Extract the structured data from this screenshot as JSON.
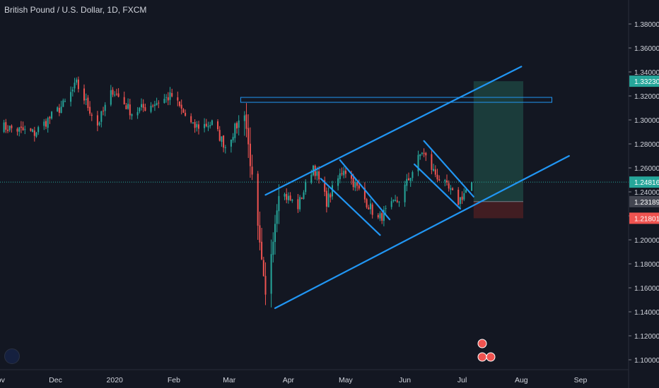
{
  "chart_title": "British Pound / U.S. Dollar, 1D, FXCM",
  "colors": {
    "background": "#131722",
    "text": "#d1d4dc",
    "grid": "#1e2230",
    "up": "#26a69a",
    "down": "#ef5350",
    "trendline": "#2196f3",
    "target_zone": "#1f4a44",
    "stop_zone": "#4a1f22"
  },
  "chart_data": {
    "type": "candlestick",
    "title": "British Pound / U.S. Dollar, 1D, FXCM",
    "x_ticks": [
      "Nov",
      "Dec",
      "2020",
      "Feb",
      "Mar",
      "Apr",
      "May",
      "Jun",
      "Jul",
      "Aug",
      "Sep"
    ],
    "y_ticks": [
      "1.38000",
      "1.36000",
      "1.34000",
      "1.32000",
      "1.30000",
      "1.28000",
      "1.26000",
      "1.24000",
      "1.22000",
      "1.20000",
      "1.18000",
      "1.16000",
      "1.14000",
      "1.12000",
      "1.10000"
    ],
    "ylim": [
      1.094,
      1.398
    ],
    "grid": false,
    "price_labels": [
      {
        "label": "1.33230",
        "value": 1.3323,
        "color": "#26a69a"
      },
      {
        "label": "1.24816",
        "value": 1.24816,
        "color": "#26a69a"
      },
      {
        "label": "1.23189",
        "value": 1.23189,
        "color": "#434651"
      },
      {
        "label": "1.21801",
        "value": 1.21801,
        "color": "#ef5350"
      }
    ],
    "current_price": 1.24816,
    "position": {
      "entry": 1.23189,
      "target": 1.3323,
      "stop": 1.21801
    },
    "resistance_zone": [
      1.3176,
      1.3188
    ],
    "anchors": [
      {
        "date": "2019-11-01",
        "close": 1.295
      },
      {
        "date": "2019-11-20",
        "close": 1.289
      },
      {
        "date": "2019-12-06",
        "close": 1.314
      },
      {
        "date": "2019-12-12",
        "close": 1.33
      },
      {
        "date": "2019-12-23",
        "close": 1.296
      },
      {
        "date": "2019-12-31",
        "close": 1.325
      },
      {
        "date": "2020-01-10",
        "close": 1.306
      },
      {
        "date": "2020-01-31",
        "close": 1.32
      },
      {
        "date": "2020-02-11",
        "close": 1.294
      },
      {
        "date": "2020-02-21",
        "close": 1.297
      },
      {
        "date": "2020-02-28",
        "close": 1.278
      },
      {
        "date": "2020-03-09",
        "close": 1.307
      },
      {
        "date": "2020-03-20",
        "close": 1.152
      },
      {
        "date": "2020-03-27",
        "close": 1.241
      },
      {
        "date": "2020-04-06",
        "close": 1.228
      },
      {
        "date": "2020-04-14",
        "close": 1.262
      },
      {
        "date": "2020-04-21",
        "close": 1.232
      },
      {
        "date": "2020-04-30",
        "close": 1.26
      },
      {
        "date": "2020-05-18",
        "close": 1.217
      },
      {
        "date": "2020-05-29",
        "close": 1.234
      },
      {
        "date": "2020-06-10",
        "close": 1.274
      },
      {
        "date": "2020-06-16",
        "close": 1.257
      },
      {
        "date": "2020-06-29",
        "close": 1.232
      },
      {
        "date": "2020-07-06",
        "close": 1.248
      }
    ],
    "trendlines": [
      {
        "name": "channel-upper",
        "from": {
          "date": "2020-03-20",
          "value": 1.2375
        },
        "to": {
          "date": "2020-08-01",
          "value": 1.3445
        }
      },
      {
        "name": "channel-lower",
        "from": {
          "date": "2020-03-25",
          "value": 1.143
        },
        "to": {
          "date": "2020-08-26",
          "value": 1.27
        }
      },
      {
        "name": "flag1-upper",
        "from": {
          "date": "2020-04-28",
          "value": 1.2665
        },
        "to": {
          "date": "2020-05-24",
          "value": 1.217
        }
      },
      {
        "name": "flag1-lower",
        "from": {
          "date": "2020-04-18",
          "value": 1.251
        },
        "to": {
          "date": "2020-05-19",
          "value": 1.204
        }
      },
      {
        "name": "flag2-upper",
        "from": {
          "date": "2020-06-11",
          "value": 1.2825
        },
        "to": {
          "date": "2020-07-07",
          "value": 1.236
        }
      },
      {
        "name": "flag2-lower",
        "from": {
          "date": "2020-06-06",
          "value": 1.263
        },
        "to": {
          "date": "2020-06-30",
          "value": 1.226
        }
      }
    ]
  }
}
